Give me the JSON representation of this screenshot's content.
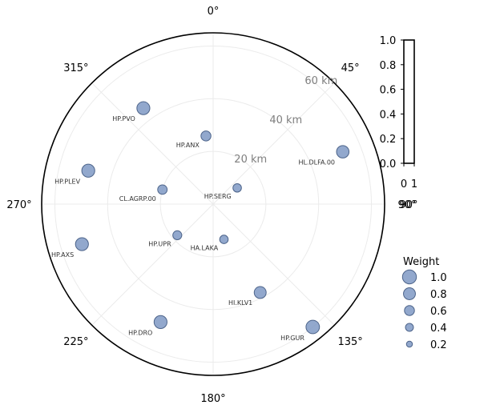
{
  "chart_data": {
    "type": "scatter",
    "projection": "polar",
    "theta_direction": "clockwise",
    "theta_zero": "north",
    "r_unit": "km",
    "r_max": 65,
    "grid": true,
    "angle_labels": [
      "0°",
      "45°",
      "90°",
      "135°",
      "180°",
      "225°",
      "270°",
      "315°"
    ],
    "radial_labels": [
      "20 km",
      "40 km",
      "60 km"
    ],
    "radial_values": [
      20,
      40,
      60
    ],
    "point_color": "#7f99c4",
    "point_edge_color": "#4d648a",
    "stations": [
      {
        "name": "HP.SERG",
        "azimuth": 56,
        "distance_km": 11,
        "weight": 0.45
      },
      {
        "name": "HP.ANX",
        "azimuth": 354,
        "distance_km": 26,
        "weight": 0.6
      },
      {
        "name": "HL.DLFA.00",
        "azimuth": 68,
        "distance_km": 53,
        "weight": 0.85
      },
      {
        "name": "HP.PVO",
        "azimuth": 324,
        "distance_km": 45,
        "weight": 0.9
      },
      {
        "name": "HP.PLEV",
        "azimuth": 285,
        "distance_km": 49,
        "weight": 0.9
      },
      {
        "name": "CL.AGRP.00",
        "azimuth": 286,
        "distance_km": 20,
        "weight": 0.55
      },
      {
        "name": "HP.UPR",
        "azimuth": 229,
        "distance_km": 18,
        "weight": 0.5
      },
      {
        "name": "HA.LAKA",
        "azimuth": 163,
        "distance_km": 14,
        "weight": 0.45
      },
      {
        "name": "HP.AXS",
        "azimuth": 253,
        "distance_km": 52,
        "weight": 0.9
      },
      {
        "name": "HI.KLV1",
        "azimuth": 152,
        "distance_km": 38,
        "weight": 0.8
      },
      {
        "name": "HP.DRO",
        "azimuth": 204,
        "distance_km": 49,
        "weight": 0.9
      },
      {
        "name": "HP.GUR",
        "azimuth": 141,
        "distance_km": 60,
        "weight": 0.95
      }
    ],
    "colorbar": {
      "ticks": [
        "1.0",
        "0.8",
        "0.6",
        "0.4",
        "0.2",
        "0.0"
      ],
      "tick_values": [
        1.0,
        0.8,
        0.6,
        0.4,
        0.2,
        0.0
      ],
      "bottom_ticks": [
        "0",
        "1"
      ],
      "sub_label": "90°"
    },
    "legend": {
      "title": "Weight",
      "placement": "lower-right",
      "entries": [
        {
          "label": "1.0",
          "weight": 1.0
        },
        {
          "label": "0.8",
          "weight": 0.8
        },
        {
          "label": "0.6",
          "weight": 0.6
        },
        {
          "label": "0.4",
          "weight": 0.4
        },
        {
          "label": "0.2",
          "weight": 0.2
        }
      ]
    }
  }
}
